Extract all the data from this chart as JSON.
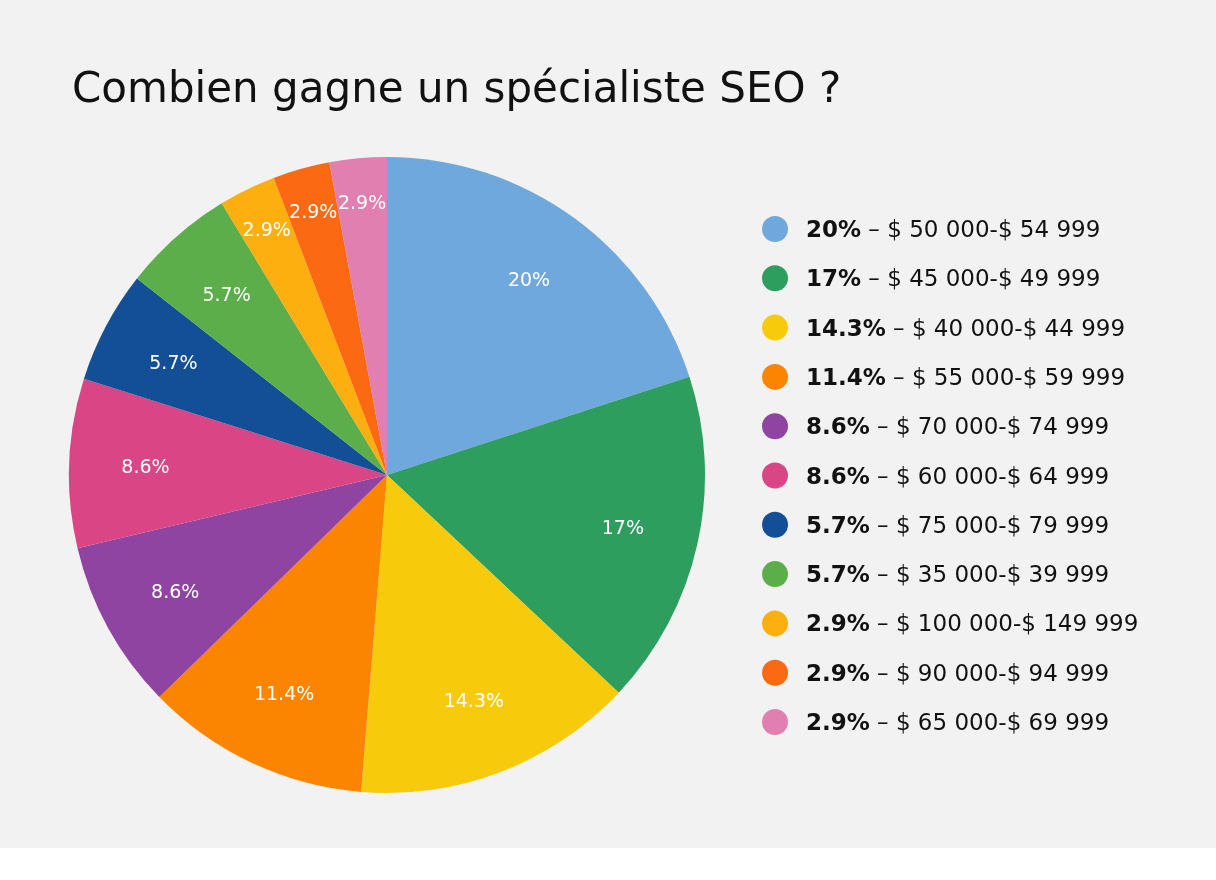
{
  "chart_data": {
    "type": "pie",
    "title": "Combien gagne un spécialiste SEO ?",
    "categories": [
      "$ 50 000-$ 54 999",
      "$ 45 000-$ 49 999",
      "$ 40 000-$ 44 999",
      "$ 55 000-$ 59 999",
      "$ 70 000-$ 74 999",
      "$ 60 000-$ 64 999",
      "$ 75 000-$ 79 999",
      "$ 35 000-$ 39 999",
      "$ 100 000-$ 149 999",
      "$ 90 000-$ 94 999",
      "$ 65 000-$ 69 999"
    ],
    "values": [
      20,
      17,
      14.3,
      11.4,
      8.6,
      8.6,
      5.7,
      5.7,
      2.9,
      2.9,
      2.9
    ],
    "value_labels": [
      "20%",
      "17%",
      "14.3%",
      "11.4%",
      "8.6%",
      "8.6%",
      "5.7%",
      "5.7%",
      "2.9%",
      "2.9%",
      "2.9%"
    ],
    "colors": [
      "#6fa8dc",
      "#2e9e5e",
      "#f7cb0c",
      "#fb8500",
      "#8e44a0",
      "#d94585",
      "#134f97",
      "#5cae4a",
      "#fcaf0e",
      "#fb6a13",
      "#e17fb0"
    ],
    "legend": "right"
  }
}
